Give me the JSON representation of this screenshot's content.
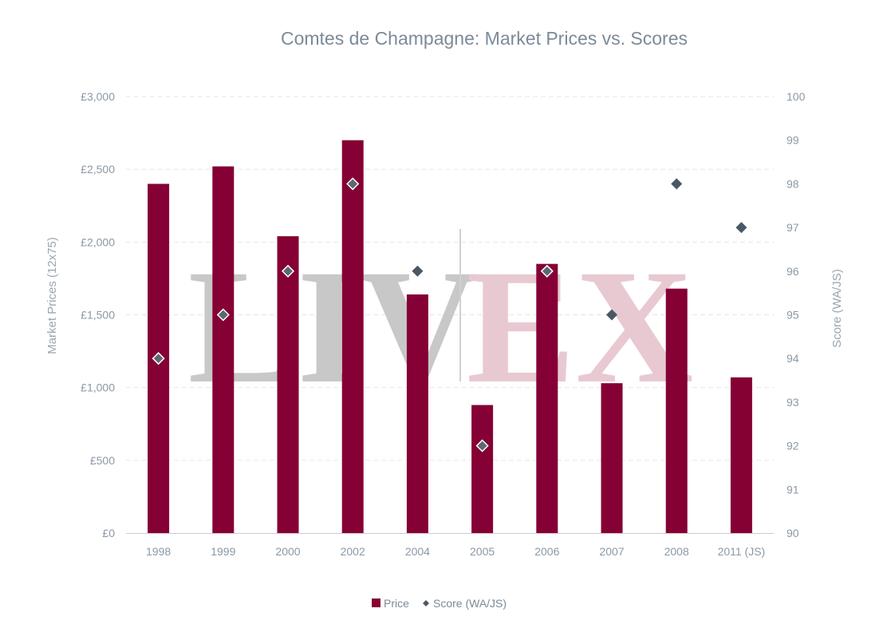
{
  "watermark": {
    "left": "LIV",
    "right": "EX",
    "left_color": "#c8c8c8",
    "right_color": "#e8c9d2",
    "divider_color": "#d0d0d0"
  },
  "chart_data": {
    "type": "bar",
    "title": "Comtes de Champagne: Market Prices vs. Scores",
    "categories": [
      "1998",
      "1999",
      "2000",
      "2002",
      "2004",
      "2005",
      "2006",
      "2007",
      "2008",
      "2011 (JS)"
    ],
    "series": [
      {
        "name": "Price",
        "type": "bar",
        "axis": "left",
        "color": "#850034",
        "values": [
          2400,
          2520,
          2040,
          2700,
          1640,
          880,
          1850,
          1030,
          1680,
          1070
        ]
      },
      {
        "name": "Score (WA/JS)",
        "type": "scatter",
        "marker": "diamond",
        "axis": "right",
        "color": "#4a5866",
        "values": [
          94,
          95,
          96,
          98,
          96,
          92,
          96,
          95,
          98,
          97
        ]
      }
    ],
    "y_left": {
      "label": "Market Prices (12x75)",
      "min": 0,
      "max": 3000,
      "step": 500,
      "tick_labels": [
        "£0",
        "£500",
        "£1,000",
        "£1,500",
        "£2,000",
        "£2,500",
        "£3,000"
      ]
    },
    "y_right": {
      "label": "Score (WA/JS)",
      "min": 90,
      "max": 100,
      "step": 1,
      "tick_labels": [
        "90",
        "91",
        "92",
        "93",
        "94",
        "95",
        "96",
        "97",
        "98",
        "99",
        "100"
      ]
    },
    "grid": true,
    "legend_position": "bottom-center",
    "colors": {
      "grid": "#e6e6e6",
      "axis_line": "#cccccc",
      "marker_outline_front": "#ffffff",
      "marker_fill_front": "#5c6873"
    }
  }
}
